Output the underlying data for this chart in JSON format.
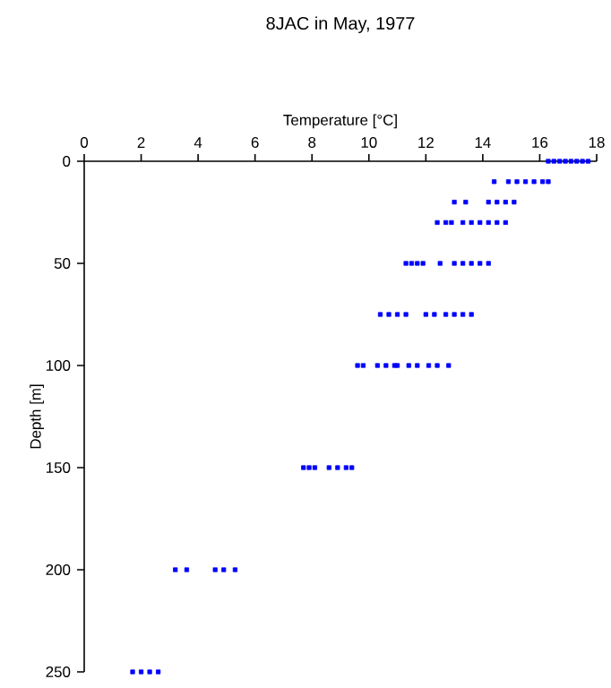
{
  "chart_data": {
    "type": "scatter",
    "title": "8JAC in May, 1977",
    "xlabel": "Temperature [°C]",
    "ylabel": "Depth [m]",
    "xlim": [
      0,
      18
    ],
    "xticks": [
      0,
      2,
      4,
      6,
      8,
      10,
      12,
      14,
      16,
      18
    ],
    "ylim": [
      250,
      0
    ],
    "yticks": [
      0,
      50,
      100,
      150,
      200,
      250
    ],
    "marker": "square",
    "series": [
      {
        "color": "#0000ff",
        "x": [
          16.3,
          16.5,
          16.7,
          16.9,
          17.1,
          17.3,
          17.5,
          17.7,
          14.4,
          14.9,
          15.2,
          15.5,
          15.8,
          16.1,
          16.3,
          13.0,
          13.4,
          14.2,
          14.5,
          14.8,
          15.1,
          12.4,
          12.7,
          12.9,
          13.3,
          13.6,
          13.9,
          14.2,
          14.5,
          14.8,
          11.3,
          11.5,
          11.7,
          11.9,
          12.5,
          13.0,
          13.3,
          13.6,
          13.9,
          14.2,
          10.4,
          10.7,
          11.0,
          11.3,
          12.0,
          12.3,
          12.7,
          13.0,
          13.3,
          13.6,
          9.6,
          9.8,
          10.3,
          10.6,
          10.9,
          11.0,
          11.4,
          11.7,
          12.1,
          12.4,
          12.8,
          7.7,
          7.9,
          8.1,
          8.6,
          8.9,
          9.2,
          9.4,
          3.2,
          3.6,
          4.6,
          4.9,
          5.3,
          1.7,
          2.0,
          2.3,
          2.6
        ],
        "values": [
          0,
          0,
          0,
          0,
          0,
          0,
          0,
          0,
          10,
          10,
          10,
          10,
          10,
          10,
          10,
          20,
          20,
          20,
          20,
          20,
          20,
          30,
          30,
          30,
          30,
          30,
          30,
          30,
          30,
          30,
          50,
          50,
          50,
          50,
          50,
          50,
          50,
          50,
          50,
          50,
          75,
          75,
          75,
          75,
          75,
          75,
          75,
          75,
          75,
          75,
          100,
          100,
          100,
          100,
          100,
          100,
          100,
          100,
          100,
          100,
          100,
          150,
          150,
          150,
          150,
          150,
          150,
          150,
          200,
          200,
          200,
          200,
          200,
          250,
          250,
          250,
          250
        ]
      }
    ]
  }
}
